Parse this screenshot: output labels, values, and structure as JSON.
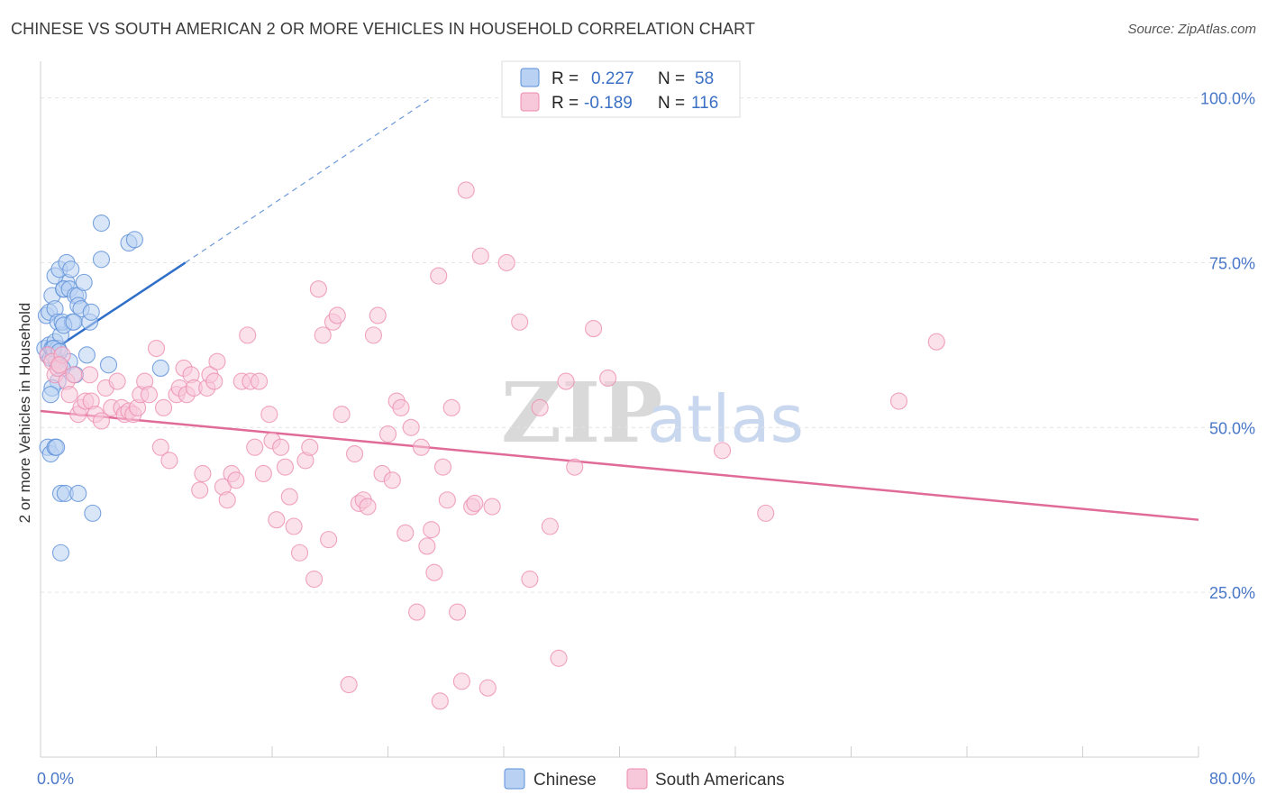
{
  "title": "CHINESE VS SOUTH AMERICAN 2 OR MORE VEHICLES IN HOUSEHOLD CORRELATION CHART",
  "source": "Source: ZipAtlas.com",
  "watermark": {
    "zip": "ZIP",
    "atlas": "atlas"
  },
  "colors": {
    "chinese": "#5b8fd8",
    "chinese_fill": "#b9d1f2",
    "south_american": "#ec8db0",
    "south_american_fill": "#f7c8d9",
    "chinese_line": "#2f6fc9",
    "south_american_line": "#e06b98",
    "tick_label": "#4a78c8"
  },
  "legend": {
    "rows": [
      {
        "r_label": "R =",
        "r_value": "0.227",
        "n_label": "N =",
        "n_value": "58"
      },
      {
        "r_label": "R =",
        "r_value": "-0.189",
        "n_label": "N =",
        "n_value": "116"
      }
    ]
  },
  "chart_data": {
    "type": "scatter",
    "title": "CHINESE VS SOUTH AMERICAN 2 OR MORE VEHICLES IN HOUSEHOLD CORRELATION CHART",
    "xlabel": "",
    "ylabel": "2 or more Vehicles in Household",
    "xlim": [
      0,
      80
    ],
    "ylim": [
      0,
      105
    ],
    "x_tick_labels": [
      "0.0%",
      "80.0%"
    ],
    "y_ticks": [
      25,
      50,
      75,
      100
    ],
    "y_tick_labels": [
      "25.0%",
      "50.0%",
      "75.0%",
      "100.0%"
    ],
    "series": [
      {
        "name": "Chinese",
        "R": 0.227,
        "N": 58,
        "trend": {
          "x0": 0,
          "y0": 60.5,
          "x1": 10,
          "y1": 75,
          "dash_to_x": 27,
          "dash_to_y": 100
        },
        "points": [
          [
            0.3,
            62
          ],
          [
            0.5,
            61
          ],
          [
            0.6,
            62.5
          ],
          [
            0.7,
            60.5
          ],
          [
            0.8,
            62
          ],
          [
            0.9,
            61
          ],
          [
            1.0,
            63
          ],
          [
            1.1,
            60
          ],
          [
            1.2,
            62
          ],
          [
            0.4,
            67
          ],
          [
            0.6,
            67.5
          ],
          [
            0.8,
            70
          ],
          [
            1.0,
            68
          ],
          [
            1.2,
            66
          ],
          [
            1.4,
            64
          ],
          [
            1.5,
            66
          ],
          [
            1.6,
            71
          ],
          [
            1.8,
            72
          ],
          [
            1.0,
            73
          ],
          [
            1.3,
            74
          ],
          [
            1.6,
            71
          ],
          [
            1.8,
            75
          ],
          [
            2.0,
            71
          ],
          [
            2.1,
            74
          ],
          [
            2.2,
            66
          ],
          [
            2.4,
            70
          ],
          [
            2.6,
            70
          ],
          [
            2.6,
            68.5
          ],
          [
            2.8,
            68
          ],
          [
            3.0,
            72
          ],
          [
            3.2,
            61
          ],
          [
            3.4,
            66
          ],
          [
            3.5,
            67.5
          ],
          [
            2.0,
            60
          ],
          [
            2.4,
            58
          ],
          [
            1.5,
            59
          ],
          [
            1.2,
            57
          ],
          [
            0.8,
            56
          ],
          [
            0.7,
            55
          ],
          [
            0.5,
            47
          ],
          [
            0.7,
            46
          ],
          [
            1.0,
            47
          ],
          [
            1.1,
            47
          ],
          [
            1.4,
            40
          ],
          [
            1.7,
            40
          ],
          [
            2.6,
            40
          ],
          [
            1.4,
            31
          ],
          [
            3.6,
            37
          ],
          [
            4.2,
            75.5
          ],
          [
            4.2,
            81
          ],
          [
            6.1,
            78
          ],
          [
            6.5,
            78.5
          ],
          [
            4.7,
            59.5
          ],
          [
            8.3,
            59
          ],
          [
            1.6,
            65.5
          ],
          [
            2.3,
            66
          ],
          [
            0.9,
            62
          ],
          [
            1.3,
            61.5
          ]
        ]
      },
      {
        "name": "South Americans",
        "R": -0.189,
        "N": 116,
        "trend": {
          "x0": 0,
          "y0": 52.5,
          "x1": 80,
          "y1": 36
        },
        "points": [
          [
            0.5,
            61
          ],
          [
            0.8,
            60
          ],
          [
            1.0,
            58
          ],
          [
            1.2,
            59
          ],
          [
            1.5,
            61
          ],
          [
            1.8,
            57
          ],
          [
            2.0,
            55
          ],
          [
            2.3,
            58
          ],
          [
            2.6,
            52
          ],
          [
            2.8,
            53
          ],
          [
            3.1,
            54
          ],
          [
            3.4,
            58
          ],
          [
            3.5,
            54
          ],
          [
            3.8,
            52
          ],
          [
            4.2,
            51
          ],
          [
            4.5,
            56
          ],
          [
            4.9,
            53
          ],
          [
            5.3,
            57
          ],
          [
            5.6,
            53
          ],
          [
            5.8,
            52
          ],
          [
            6.1,
            52.5
          ],
          [
            6.4,
            52
          ],
          [
            6.7,
            53
          ],
          [
            6.9,
            55
          ],
          [
            7.2,
            57
          ],
          [
            7.5,
            55
          ],
          [
            8.0,
            62
          ],
          [
            8.3,
            47
          ],
          [
            8.5,
            53
          ],
          [
            8.9,
            45
          ],
          [
            9.4,
            55
          ],
          [
            9.6,
            56
          ],
          [
            9.9,
            59
          ],
          [
            10.1,
            55
          ],
          [
            10.4,
            58
          ],
          [
            10.6,
            56
          ],
          [
            11.0,
            40.5
          ],
          [
            11.2,
            43
          ],
          [
            11.5,
            56
          ],
          [
            11.7,
            58
          ],
          [
            12.0,
            57
          ],
          [
            12.2,
            60
          ],
          [
            12.6,
            41
          ],
          [
            12.9,
            39
          ],
          [
            13.2,
            43
          ],
          [
            13.5,
            42
          ],
          [
            13.9,
            57
          ],
          [
            14.3,
            64
          ],
          [
            14.5,
            57
          ],
          [
            14.8,
            47
          ],
          [
            15.1,
            57
          ],
          [
            15.4,
            43
          ],
          [
            15.8,
            52
          ],
          [
            16.0,
            48
          ],
          [
            16.3,
            36
          ],
          [
            16.6,
            47
          ],
          [
            16.9,
            44
          ],
          [
            17.2,
            39.5
          ],
          [
            17.5,
            35
          ],
          [
            17.9,
            31
          ],
          [
            18.3,
            45
          ],
          [
            18.6,
            47
          ],
          [
            18.9,
            27
          ],
          [
            19.2,
            71
          ],
          [
            19.5,
            64
          ],
          [
            19.9,
            33
          ],
          [
            20.2,
            66
          ],
          [
            20.5,
            67
          ],
          [
            20.8,
            52
          ],
          [
            21.3,
            11
          ],
          [
            21.7,
            46
          ],
          [
            22.0,
            38.5
          ],
          [
            22.3,
            39
          ],
          [
            22.6,
            38
          ],
          [
            23.0,
            64
          ],
          [
            23.3,
            67
          ],
          [
            23.6,
            43
          ],
          [
            24.0,
            49
          ],
          [
            24.3,
            42
          ],
          [
            24.6,
            54
          ],
          [
            24.9,
            53
          ],
          [
            25.2,
            34
          ],
          [
            25.6,
            50
          ],
          [
            26.0,
            22
          ],
          [
            26.3,
            47
          ],
          [
            26.7,
            32
          ],
          [
            27.0,
            34.5
          ],
          [
            27.2,
            28
          ],
          [
            27.5,
            73
          ],
          [
            27.8,
            44
          ],
          [
            28.1,
            39
          ],
          [
            28.4,
            53
          ],
          [
            28.8,
            22
          ],
          [
            29.1,
            11.5
          ],
          [
            29.4,
            86
          ],
          [
            29.8,
            38
          ],
          [
            30.0,
            38.5
          ],
          [
            30.4,
            76
          ],
          [
            30.9,
            10.5
          ],
          [
            31.2,
            38
          ],
          [
            32.2,
            75
          ],
          [
            33.1,
            66
          ],
          [
            33.8,
            27
          ],
          [
            34.5,
            53
          ],
          [
            35.2,
            35
          ],
          [
            35.8,
            15
          ],
          [
            36.3,
            57
          ],
          [
            36.9,
            44
          ],
          [
            38.2,
            65
          ],
          [
            39.2,
            57.5
          ],
          [
            47.1,
            46.5
          ],
          [
            50.1,
            37
          ],
          [
            59.3,
            54
          ],
          [
            61.9,
            63
          ],
          [
            27.6,
            8.5
          ],
          [
            1.3,
            59.5
          ]
        ]
      }
    ],
    "legend_position": "top-center"
  }
}
